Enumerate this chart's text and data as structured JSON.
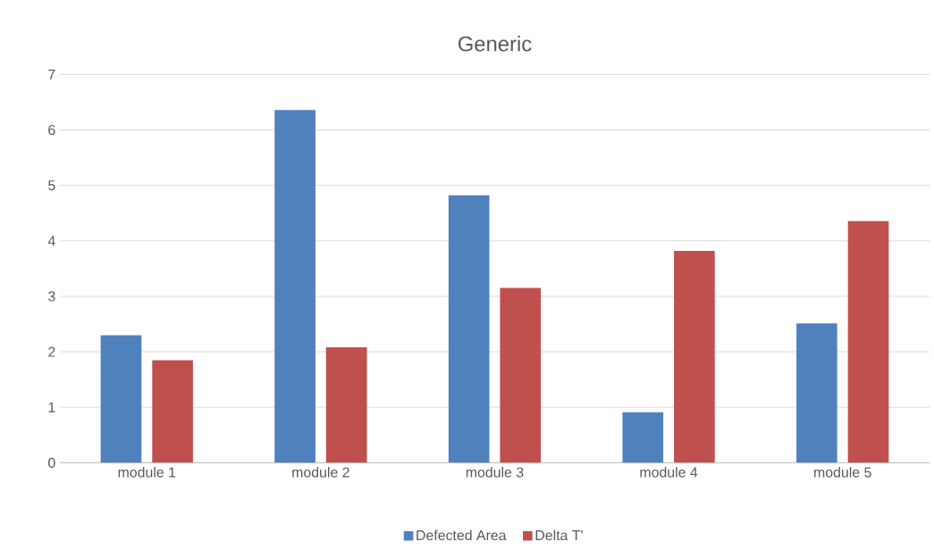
{
  "chart_data": {
    "type": "bar",
    "title": "Generic",
    "categories": [
      "module 1",
      "module 2",
      "module 3",
      "module 4",
      "module 5"
    ],
    "series": [
      {
        "name": "Defected Area",
        "color": "#4f81bd",
        "values": [
          2.3,
          6.36,
          4.82,
          0.91,
          2.51
        ]
      },
      {
        "name": "Delta T'",
        "color": "#c0504d",
        "values": [
          1.85,
          2.08,
          3.15,
          3.82,
          4.36
        ]
      }
    ],
    "ylim": [
      0,
      7
    ],
    "yticks": [
      0,
      1,
      2,
      3,
      4,
      5,
      6,
      7
    ],
    "grid": "y",
    "legend": "bottom"
  }
}
